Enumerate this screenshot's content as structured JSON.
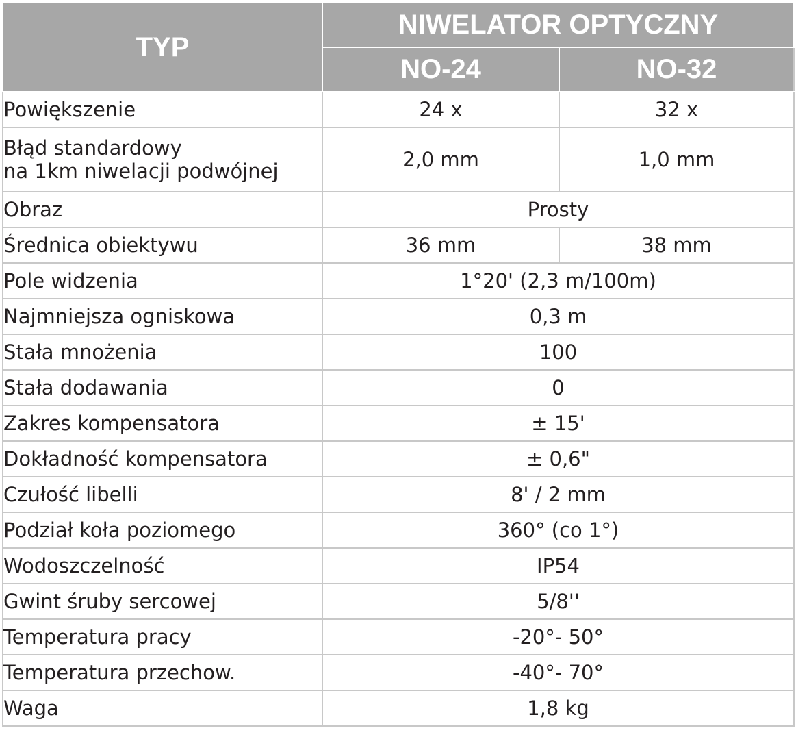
{
  "header": {
    "type_label": "TYP",
    "group_label": "NIWELATOR OPTYCZNY",
    "models": [
      "NO-24",
      "NO-32"
    ]
  },
  "rows": [
    {
      "label": "Powiększenie",
      "values": [
        "24 x",
        "32 x"
      ]
    },
    {
      "label_lines": [
        "Błąd standardowy",
        "na 1km niwelacji podwójnej"
      ],
      "values": [
        "2,0 mm",
        "1,0 mm"
      ]
    },
    {
      "label": "Obraz",
      "value": "Prosty"
    },
    {
      "label": "Średnica obiektywu",
      "values": [
        "36 mm",
        "38 mm"
      ]
    },
    {
      "label": "Pole widzenia",
      "value": "1°20' (2,3 m/100m)"
    },
    {
      "label": "Najmniejsza ogniskowa",
      "value": "0,3 m"
    },
    {
      "label": "Stała mnożenia",
      "value": "100"
    },
    {
      "label": "Stała dodawania",
      "value": "0"
    },
    {
      "label": "Zakres kompensatora",
      "value": "± 15'"
    },
    {
      "label": "Dokładność kompensatora",
      "value": "± 0,6\""
    },
    {
      "label": "Czułość libelli",
      "value": "8' / 2 mm"
    },
    {
      "label": "Podział koła poziomego",
      "value": "360° (co 1°)"
    },
    {
      "label": "Wodoszczelność",
      "value": "IP54"
    },
    {
      "label": "Gwint śruby sercowej",
      "value": "5/8''"
    },
    {
      "label": "Temperatura pracy",
      "value": "-20°- 50°"
    },
    {
      "label": "Temperatura przechow.",
      "value": "-40°- 70°"
    },
    {
      "label": "Waga",
      "value": "1,8 kg"
    }
  ],
  "colors": {
    "header_bg": "#a7a7a7",
    "header_text": "#ffffff",
    "grid": "#c8c8c8",
    "text": "#231f20"
  }
}
